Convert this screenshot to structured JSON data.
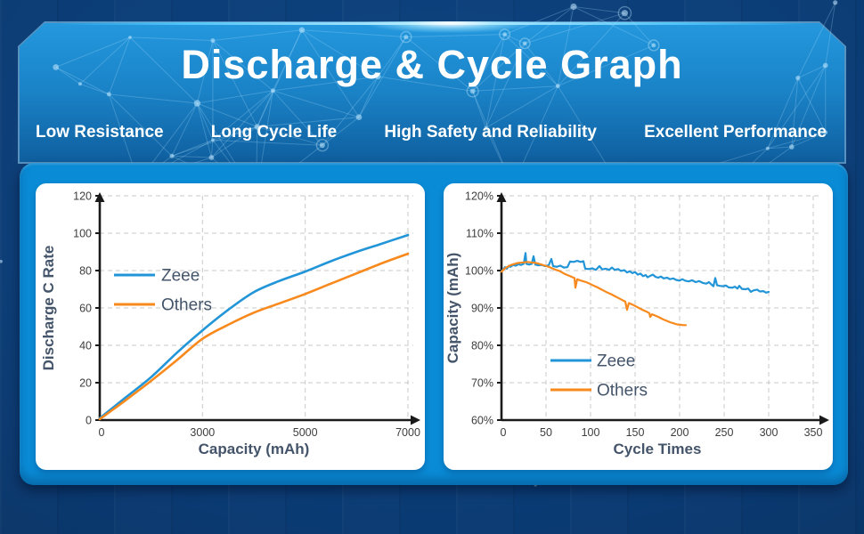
{
  "header": {
    "title": "Discharge & Cycle Graph",
    "features": [
      "Low Resistance",
      "Long Cycle Life",
      "High Safety and Reliability",
      "Excellent Performance"
    ]
  },
  "colors": {
    "background_navy": "#0a3a72",
    "header_blue_top": "#2498de",
    "header_blue_bottom": "#0f5f9f",
    "panel_blue": "#0a8bd6",
    "card_white": "#ffffff",
    "zeee_line": "#2295d8",
    "others_line": "#f8891d",
    "axis_line": "#1a1a1a",
    "grid_line": "#c9c9c9",
    "axis_title_text": "#44546a",
    "tick_text": "#3d3d3d",
    "legend_text": "#44546a"
  },
  "chart_data": [
    {
      "type": "line",
      "title": "",
      "xlabel": "Capacity (mAh)",
      "ylabel": "Discharge C Rate",
      "x_tick_labels": [
        "0",
        "3000",
        "5000",
        "7000"
      ],
      "x_tick_values": [
        0,
        3000,
        5000,
        7000
      ],
      "x_ticks_equally_spaced": true,
      "y_tick_labels": [
        "0",
        "20",
        "40",
        "60",
        "80",
        "100",
        "120"
      ],
      "y_tick_values": [
        0,
        20,
        40,
        60,
        80,
        100,
        120
      ],
      "ylim": [
        0,
        120
      ],
      "grid": "dashed",
      "legend_position": "upper-left-inside",
      "series": [
        {
          "name": "Zeee",
          "color": "#2295d8",
          "points": [
            [
              0,
              1
            ],
            [
              750,
              12
            ],
            [
              1500,
              23
            ],
            [
              2250,
              36
            ],
            [
              3000,
              48
            ],
            [
              3500,
              59
            ],
            [
              4000,
              68.5
            ],
            [
              4500,
              74.5
            ],
            [
              5000,
              79.5
            ],
            [
              5500,
              85
            ],
            [
              6000,
              90
            ],
            [
              6500,
              94.5
            ],
            [
              7000,
              99
            ]
          ]
        },
        {
          "name": "Others",
          "color": "#f8891d",
          "points": [
            [
              0,
              0.5
            ],
            [
              750,
              10.5
            ],
            [
              1500,
              21
            ],
            [
              2250,
              32
            ],
            [
              3000,
              43.5
            ],
            [
              3500,
              51
            ],
            [
              4000,
              57.5
            ],
            [
              4500,
              62.5
            ],
            [
              5000,
              67.5
            ],
            [
              5500,
              73
            ],
            [
              6000,
              78.5
            ],
            [
              6500,
              84
            ],
            [
              7000,
              89
            ]
          ]
        }
      ]
    },
    {
      "type": "line",
      "title": "",
      "xlabel": "Cycle Times",
      "ylabel": "Capacity (mAh)",
      "x_tick_labels": [
        "0",
        "50",
        "100",
        "150",
        "200",
        "250",
        "300",
        "350"
      ],
      "x_tick_values": [
        0,
        50,
        100,
        150,
        200,
        250,
        300,
        350
      ],
      "x_ticks_equally_spaced": true,
      "y_tick_labels": [
        "60%",
        "70%",
        "80%",
        "90%",
        "100%",
        "110%",
        "120%"
      ],
      "y_tick_values": [
        60,
        70,
        80,
        90,
        100,
        110,
        120
      ],
      "ylim": [
        60,
        120
      ],
      "grid": "dashed",
      "legend_position": "lower-left-inside",
      "series": [
        {
          "name": "Zeee",
          "color": "#2295d8",
          "points": [
            [
              0,
              99.8
            ],
            [
              2,
              100.3
            ],
            [
              4,
              100.9
            ],
            [
              6,
              100.5
            ],
            [
              8,
              101.2
            ],
            [
              10,
              101.0
            ],
            [
              13,
              101.5
            ],
            [
              16,
              101.3
            ],
            [
              19,
              101.7
            ],
            [
              22,
              101.5
            ],
            [
              25,
              101.8
            ],
            [
              27,
              104.7
            ],
            [
              28,
              101.8
            ],
            [
              31,
              101.6
            ],
            [
              34,
              101.8
            ],
            [
              36,
              103.8
            ],
            [
              38,
              101.6
            ],
            [
              41,
              101.4
            ],
            [
              45,
              101.5
            ],
            [
              49,
              101.2
            ],
            [
              53,
              101.4
            ],
            [
              56,
              103.1
            ],
            [
              58,
              101.2
            ],
            [
              62,
              101.0
            ],
            [
              66,
              101.3
            ],
            [
              70,
              100.8
            ],
            [
              74,
              100.9
            ],
            [
              77,
              102.4
            ],
            [
              81,
              102.3
            ],
            [
              85,
              102.6
            ],
            [
              89,
              102.3
            ],
            [
              92,
              102.5
            ],
            [
              94,
              100.5
            ],
            [
              98,
              100.4
            ],
            [
              102,
              100.6
            ],
            [
              106,
              100.2
            ],
            [
              110,
              101.2
            ],
            [
              113,
              100.3
            ],
            [
              117,
              100.5
            ],
            [
              121,
              100.2
            ],
            [
              124,
              100.8
            ],
            [
              127,
              100.2
            ],
            [
              131,
              100.4
            ],
            [
              134,
              99.9
            ],
            [
              138,
              100.1
            ],
            [
              141,
              99.5
            ],
            [
              144,
              99.8
            ],
            [
              147,
              99.3
            ],
            [
              150,
              99.6
            ],
            [
              153,
              98.9
            ],
            [
              156,
              99.2
            ],
            [
              159,
              98.5
            ],
            [
              162,
              98.8
            ],
            [
              164,
              98.2
            ],
            [
              167,
              98.6
            ],
            [
              170,
              98.9
            ],
            [
              173,
              98.3
            ],
            [
              176,
              98.1
            ],
            [
              179,
              98.4
            ],
            [
              182,
              97.9
            ],
            [
              186,
              98.1
            ],
            [
              189,
              97.7
            ],
            [
              193,
              97.9
            ],
            [
              196,
              97.5
            ],
            [
              200,
              97.3
            ],
            [
              203,
              97.7
            ],
            [
              206,
              97.3
            ],
            [
              210,
              97.1
            ],
            [
              214,
              97.4
            ],
            [
              218,
              96.9
            ],
            [
              222,
              97.2
            ],
            [
              226,
              96.7
            ],
            [
              230,
              96.5
            ],
            [
              233,
              96.9
            ],
            [
              236,
              96.2
            ],
            [
              238,
              95.8
            ],
            [
              240,
              98.0
            ],
            [
              242,
              96.1
            ],
            [
              245,
              95.9
            ],
            [
              249,
              95.8
            ],
            [
              252,
              96.0
            ],
            [
              255,
              95.5
            ],
            [
              259,
              95.4
            ],
            [
              262,
              95.7
            ],
            [
              265,
              95.2
            ],
            [
              267,
              95.9
            ],
            [
              270,
              95.1
            ],
            [
              274,
              95.0
            ],
            [
              277,
              95.2
            ],
            [
              280,
              94.3
            ],
            [
              283,
              94.7
            ],
            [
              287,
              94.9
            ],
            [
              290,
              94.4
            ],
            [
              294,
              94.5
            ],
            [
              297,
              94.1
            ],
            [
              300,
              94.3
            ]
          ]
        },
        {
          "name": "Others",
          "color": "#f8891d",
          "points": [
            [
              0,
              99.7
            ],
            [
              3,
              100.4
            ],
            [
              6,
              100.9
            ],
            [
              9,
              101.3
            ],
            [
              12,
              101.6
            ],
            [
              15,
              101.8
            ],
            [
              18,
              102.0
            ],
            [
              21,
              102.1
            ],
            [
              25,
              102.2
            ],
            [
              29,
              102.3
            ],
            [
              33,
              102.2
            ],
            [
              37,
              102.1
            ],
            [
              41,
              101.9
            ],
            [
              45,
              101.6
            ],
            [
              49,
              101.3
            ],
            [
              53,
              101.0
            ],
            [
              57,
              100.6
            ],
            [
              61,
              100.2
            ],
            [
              65,
              99.9
            ],
            [
              68,
              99.5
            ],
            [
              71,
              99.1
            ],
            [
              74,
              98.8
            ],
            [
              77,
              98.5
            ],
            [
              80,
              98.2
            ],
            [
              82,
              98.0
            ],
            [
              83,
              95.4
            ],
            [
              85,
              97.7
            ],
            [
              88,
              97.4
            ],
            [
              91,
              97.2
            ],
            [
              95,
              96.9
            ],
            [
              99,
              96.5
            ],
            [
              103,
              96.0
            ],
            [
              107,
              95.6
            ],
            [
              111,
              95.1
            ],
            [
              115,
              94.6
            ],
            [
              119,
              94.1
            ],
            [
              123,
              93.7
            ],
            [
              127,
              93.2
            ],
            [
              131,
              92.7
            ],
            [
              135,
              92.2
            ],
            [
              139,
              91.7
            ],
            [
              141,
              89.5
            ],
            [
              143,
              91.3
            ],
            [
              147,
              90.9
            ],
            [
              151,
              90.4
            ],
            [
              155,
              89.9
            ],
            [
              159,
              89.4
            ],
            [
              163,
              89.0
            ],
            [
              166,
              88.6
            ],
            [
              167,
              87.6
            ],
            [
              169,
              88.3
            ],
            [
              173,
              87.9
            ],
            [
              177,
              87.5
            ],
            [
              181,
              87.0
            ],
            [
              185,
              86.6
            ],
            [
              189,
              86.2
            ],
            [
              193,
              85.9
            ],
            [
              197,
              85.6
            ],
            [
              201,
              85.5
            ],
            [
              204,
              85.4
            ],
            [
              207,
              85.4
            ]
          ]
        }
      ]
    }
  ]
}
